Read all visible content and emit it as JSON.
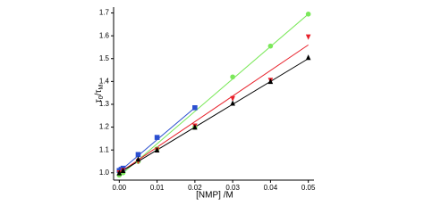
{
  "chart_data": {
    "type": "scatter",
    "xlabel": "[NMP] /M",
    "ylabel": [
      "τ",
      "0",
      "/τ",
      "M"
    ],
    "xlim": [
      -0.0015,
      0.0515
    ],
    "ylim": [
      0.968,
      1.7255
    ],
    "xticks": [
      {
        "value": 0,
        "label": "0.00"
      },
      {
        "value": 0.01,
        "label": "0.01"
      },
      {
        "value": 0.02,
        "label": "0.02"
      },
      {
        "value": 0.03,
        "label": "0.03"
      },
      {
        "value": 0.04,
        "label": "0.04"
      },
      {
        "value": 0.05,
        "label": "0.05"
      }
    ],
    "yticks": [
      {
        "value": 1.0,
        "label": "1.0"
      },
      {
        "value": 1.1,
        "label": "1.1"
      },
      {
        "value": 1.2,
        "label": "1.2"
      },
      {
        "value": 1.3,
        "label": "1.3"
      },
      {
        "value": 1.4,
        "label": "1.4"
      },
      {
        "value": 1.5,
        "label": "1.5"
      },
      {
        "value": 1.6,
        "label": "1.6"
      },
      {
        "value": 1.7,
        "label": "1.7"
      }
    ],
    "series": [
      {
        "color": "#2b4fd0",
        "marker": "square",
        "x": [
          0,
          0.0005,
          0.001,
          0.005,
          0.01,
          0.02
        ],
        "values": [
          1.01,
          1.015,
          1.02,
          1.08,
          1.155,
          1.285
        ],
        "fit_x": [
          0,
          0.02
        ],
        "fit_y": [
          1.005,
          1.285
        ]
      },
      {
        "color": "#7be85a",
        "marker": "circle",
        "x": [
          0,
          0.001,
          0.005,
          0.01,
          0.02,
          0.03,
          0.04,
          0.05
        ],
        "values": [
          0.99,
          1.0,
          1.05,
          1.105,
          1.2,
          1.42,
          1.555,
          1.695
        ],
        "fit_x": [
          0,
          0.05
        ],
        "fit_y": [
          0.985,
          1.695
        ]
      },
      {
        "color": "#e8202a",
        "marker": "triangle-down",
        "x": [
          0,
          0.001,
          0.005,
          0.01,
          0.02,
          0.03,
          0.04,
          0.05
        ],
        "values": [
          1.0,
          1.01,
          1.05,
          1.1,
          1.205,
          1.325,
          1.405,
          1.595
        ],
        "fit_x": [
          0,
          0.05
        ],
        "fit_y": [
          1.0,
          1.56
        ]
      },
      {
        "color": "#000000",
        "marker": "triangle-up",
        "x": [
          0,
          0.001,
          0.005,
          0.01,
          0.02,
          0.03,
          0.04,
          0.05
        ],
        "values": [
          1.0,
          1.01,
          1.06,
          1.1,
          1.2,
          1.305,
          1.4,
          1.505
        ],
        "fit_x": [
          0,
          0.05
        ],
        "fit_y": [
          1.0,
          1.5
        ]
      }
    ]
  }
}
